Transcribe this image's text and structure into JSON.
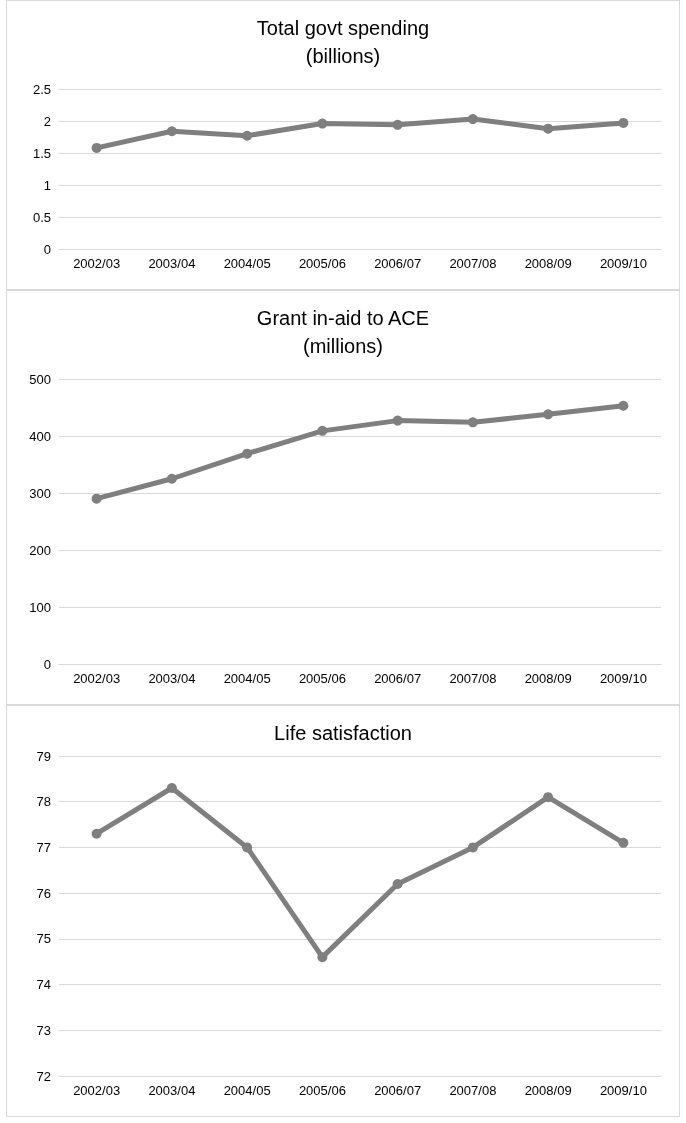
{
  "chart_data": [
    {
      "type": "line",
      "title": "Total govt spending\n(billions)",
      "categories": [
        "2002/03",
        "2003/04",
        "2004/05",
        "2005/06",
        "2006/07",
        "2007/08",
        "2008/09",
        "2009/10"
      ],
      "series": [
        {
          "color": "#7f7f80",
          "values": [
            1.58,
            1.84,
            1.77,
            1.96,
            1.94,
            2.03,
            1.88,
            1.97
          ]
        }
      ],
      "ylim": [
        0,
        2.5
      ],
      "yticks": [
        0,
        0.5,
        1,
        1.5,
        2,
        2.5
      ],
      "grid": "y",
      "marker": "circle",
      "line_style": "solid"
    },
    {
      "type": "line",
      "title": "Grant in-aid to ACE\n(millions)",
      "categories": [
        "2002/03",
        "2003/04",
        "2004/05",
        "2005/06",
        "2006/07",
        "2007/08",
        "2008/09",
        "2009/10"
      ],
      "series": [
        {
          "color": "#7f7f80",
          "values": [
            290,
            325,
            369,
            409,
            427,
            424,
            438,
            453
          ]
        }
      ],
      "ylim": [
        0,
        500
      ],
      "yticks": [
        0,
        100,
        200,
        300,
        400,
        500
      ],
      "grid": "y",
      "marker": "circle",
      "line_style": "solid"
    },
    {
      "type": "line",
      "title": "Life satisfaction",
      "categories": [
        "2002/03",
        "2003/04",
        "2004/05",
        "2005/06",
        "2006/07",
        "2007/08",
        "2008/09",
        "2009/10"
      ],
      "series": [
        {
          "color": "#7f7f80",
          "values": [
            77.3,
            78.3,
            77.0,
            74.6,
            76.2,
            77.0,
            78.1,
            77.1
          ]
        }
      ],
      "ylim": [
        72,
        79
      ],
      "yticks": [
        72,
        73,
        74,
        75,
        76,
        77,
        78,
        79
      ],
      "grid": "y",
      "marker": "circle",
      "line_style": "solid"
    }
  ]
}
